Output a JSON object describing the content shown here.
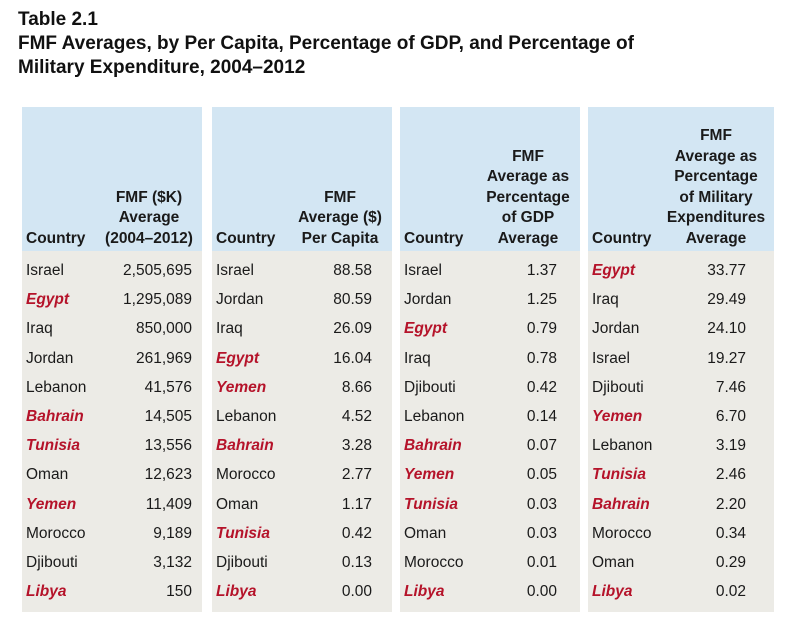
{
  "title": {
    "number": "Table 2.1",
    "line1": "FMF Averages, by Per Capita, Percentage of GDP, and Percentage of",
    "line2": "Military Expenditure, 2004–2012"
  },
  "colors": {
    "header_bg": "#d3e6f3",
    "body_bg": "#ecebe6",
    "highlight": "#b5132a"
  },
  "panels": [
    {
      "country_header": "Country",
      "value_header": [
        "FMF ($K)",
        "Average",
        "(2004–2012)"
      ],
      "rows": [
        {
          "country": "Israel",
          "value": "2,505,695",
          "highlight": false
        },
        {
          "country": "Egypt",
          "value": "1,295,089",
          "highlight": true
        },
        {
          "country": "Iraq",
          "value": "850,000",
          "highlight": false
        },
        {
          "country": "Jordan",
          "value": "261,969",
          "highlight": false
        },
        {
          "country": "Lebanon",
          "value": "41,576",
          "highlight": false
        },
        {
          "country": "Bahrain",
          "value": "14,505",
          "highlight": true
        },
        {
          "country": "Tunisia",
          "value": "13,556",
          "highlight": true
        },
        {
          "country": "Oman",
          "value": "12,623",
          "highlight": false
        },
        {
          "country": "Yemen",
          "value": "11,409",
          "highlight": true
        },
        {
          "country": "Morocco",
          "value": "9,189",
          "highlight": false
        },
        {
          "country": "Djibouti",
          "value": "3,132",
          "highlight": false
        },
        {
          "country": "Libya",
          "value": "150",
          "highlight": true
        }
      ]
    },
    {
      "country_header": "Country",
      "value_header": [
        "FMF",
        "Average ($)",
        "Per Capita"
      ],
      "rows": [
        {
          "country": "Israel",
          "value": "88.58",
          "highlight": false
        },
        {
          "country": "Jordan",
          "value": "80.59",
          "highlight": false
        },
        {
          "country": "Iraq",
          "value": "26.09",
          "highlight": false
        },
        {
          "country": "Egypt",
          "value": "16.04",
          "highlight": true
        },
        {
          "country": "Yemen",
          "value": "8.66",
          "highlight": true
        },
        {
          "country": "Lebanon",
          "value": "4.52",
          "highlight": false
        },
        {
          "country": "Bahrain",
          "value": "3.28",
          "highlight": true
        },
        {
          "country": "Morocco",
          "value": "2.77",
          "highlight": false
        },
        {
          "country": "Oman",
          "value": "1.17",
          "highlight": false
        },
        {
          "country": "Tunisia",
          "value": "0.42",
          "highlight": true
        },
        {
          "country": "Djibouti",
          "value": "0.13",
          "highlight": false
        },
        {
          "country": "Libya",
          "value": "0.00",
          "highlight": true
        }
      ]
    },
    {
      "country_header": "Country",
      "value_header": [
        "FMF",
        "Average as",
        "Percentage",
        "of GDP",
        "Average"
      ],
      "rows": [
        {
          "country": "Israel",
          "value": "1.37",
          "highlight": false
        },
        {
          "country": "Jordan",
          "value": "1.25",
          "highlight": false
        },
        {
          "country": "Egypt",
          "value": "0.79",
          "highlight": true
        },
        {
          "country": "Iraq",
          "value": "0.78",
          "highlight": false
        },
        {
          "country": "Djibouti",
          "value": "0.42",
          "highlight": false
        },
        {
          "country": "Lebanon",
          "value": "0.14",
          "highlight": false
        },
        {
          "country": "Bahrain",
          "value": "0.07",
          "highlight": true
        },
        {
          "country": "Yemen",
          "value": "0.05",
          "highlight": true
        },
        {
          "country": "Tunisia",
          "value": "0.03",
          "highlight": true
        },
        {
          "country": "Oman",
          "value": "0.03",
          "highlight": false
        },
        {
          "country": "Morocco",
          "value": "0.01",
          "highlight": false
        },
        {
          "country": "Libya",
          "value": "0.00",
          "highlight": true
        }
      ]
    },
    {
      "country_header": "Country",
      "value_header": [
        "FMF",
        "Average as",
        "Percentage",
        "of Military",
        "Expenditures",
        "Average"
      ],
      "rows": [
        {
          "country": "Egypt",
          "value": "33.77",
          "highlight": true
        },
        {
          "country": "Iraq",
          "value": "29.49",
          "highlight": false
        },
        {
          "country": "Jordan",
          "value": "24.10",
          "highlight": false
        },
        {
          "country": "Israel",
          "value": "19.27",
          "highlight": false
        },
        {
          "country": "Djibouti",
          "value": "7.46",
          "highlight": false
        },
        {
          "country": "Yemen",
          "value": "6.70",
          "highlight": true
        },
        {
          "country": "Lebanon",
          "value": "3.19",
          "highlight": false
        },
        {
          "country": "Tunisia",
          "value": "2.46",
          "highlight": true
        },
        {
          "country": "Bahrain",
          "value": "2.20",
          "highlight": true
        },
        {
          "country": "Morocco",
          "value": "0.34",
          "highlight": false
        },
        {
          "country": "Oman",
          "value": "0.29",
          "highlight": false
        },
        {
          "country": "Libya",
          "value": "0.02",
          "highlight": true
        }
      ]
    }
  ]
}
